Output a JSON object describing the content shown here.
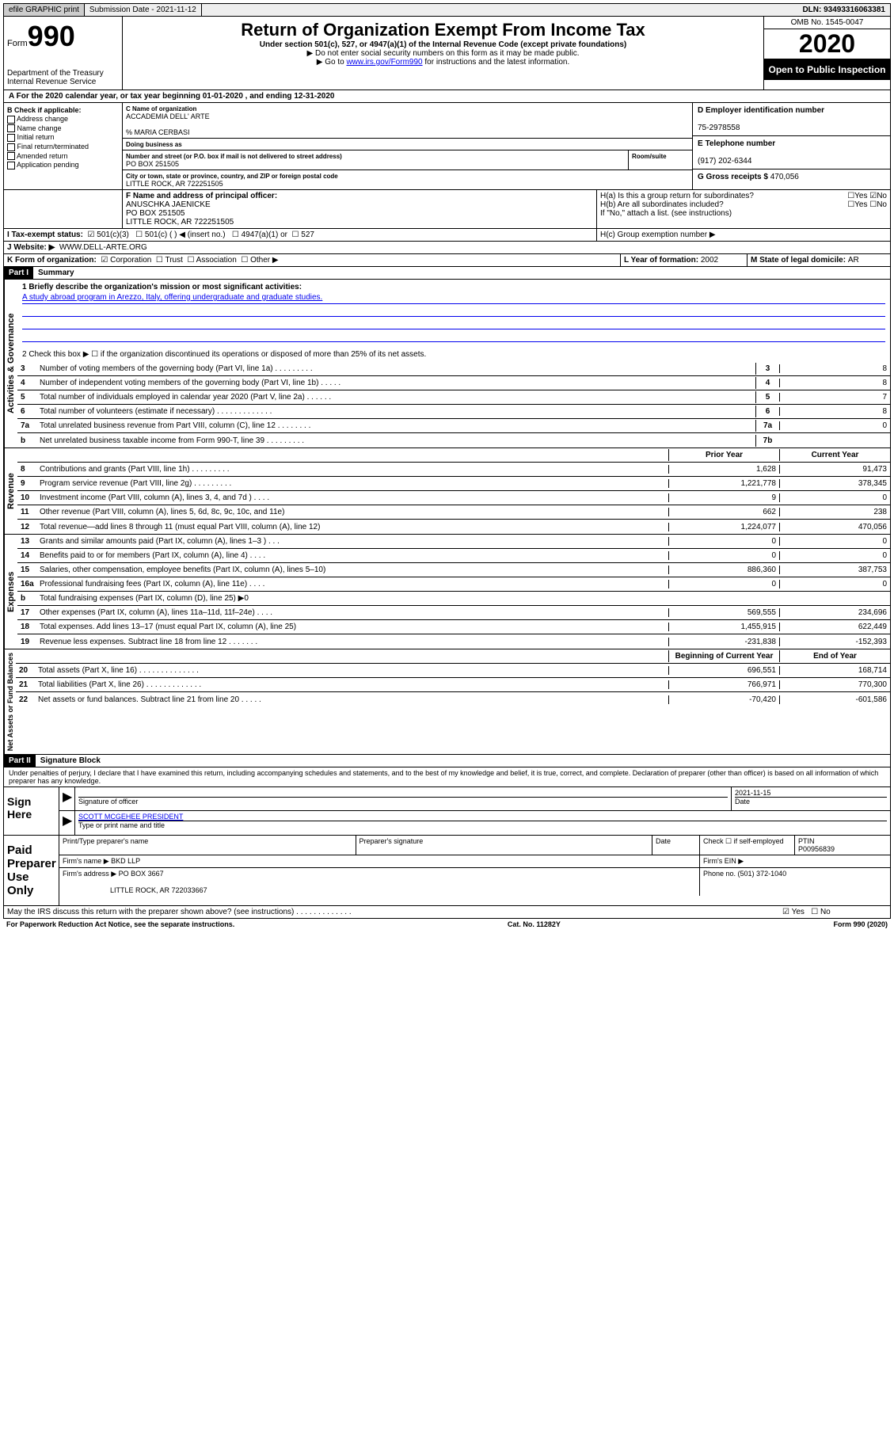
{
  "topbar": {
    "efile": "efile GRAPHIC print",
    "subdate_label": "Submission Date - ",
    "subdate": "2021-11-12",
    "dln_label": "DLN: ",
    "dln": "93493316063381"
  },
  "header": {
    "form": "Form",
    "form_num": "990",
    "dept": "Department of the Treasury",
    "irs": "Internal Revenue Service",
    "title": "Return of Organization Exempt From Income Tax",
    "subtitle": "Under section 501(c), 527, or 4947(a)(1) of the Internal Revenue Code (except private foundations)",
    "note1": "▶ Do not enter social security numbers on this form as it may be made public.",
    "note2_pre": "▶ Go to ",
    "note2_link": "www.irs.gov/Form990",
    "note2_post": " for instructions and the latest information.",
    "omb": "OMB No. 1545-0047",
    "year": "2020",
    "inspect": "Open to Public Inspection"
  },
  "blockA": "A   For the 2020 calendar year, or tax year beginning 01-01-2020    , and ending 12-31-2020",
  "blockB": {
    "header": "B Check if applicable:",
    "items": [
      "Address change",
      "Name change",
      "Initial return",
      "Final return/terminated",
      "Amended return",
      "Application pending"
    ]
  },
  "blockC": {
    "name_label": "C Name of organization",
    "name": "ACCADEMIA DELL' ARTE",
    "care_of": "% MARIA CERBASI",
    "dba_label": "Doing business as",
    "street_label": "Number and street (or P.O. box if mail is not delivered to street address)",
    "room_label": "Room/suite",
    "street": "PO BOX 251505",
    "city_label": "City or town, state or province, country, and ZIP or foreign postal code",
    "city": "LITTLE ROCK, AR   722251505"
  },
  "blockD": {
    "label": "D Employer identification number",
    "value": "75-2978558"
  },
  "blockE": {
    "label": "E Telephone number",
    "value": "(917) 202-6344"
  },
  "blockG": {
    "label": "G Gross receipts $ ",
    "value": "470,056"
  },
  "blockF": {
    "label": "F  Name and address of principal officer:",
    "name": "ANUSCHKA JAENICKE",
    "addr1": "PO BOX 251505",
    "addr2": "LITTLE ROCK, AR   722251505"
  },
  "blockH": {
    "a": "H(a)  Is this a group return for subordinates?",
    "b": "H(b)  Are all subordinates included?",
    "note": "If \"No,\" attach a list. (see instructions)",
    "c": "H(c)  Group exemption number ▶"
  },
  "blockI": {
    "label": "I   Tax-exempt status:",
    "opt1": "501(c)(3)",
    "opt2": "501(c) (   ) ◀ (insert no.)",
    "opt3": "4947(a)(1) or",
    "opt4": "527"
  },
  "blockJ": {
    "label": "J   Website: ▶",
    "value": "WWW.DELL-ARTE.ORG"
  },
  "blockK": "K Form of organization:",
  "blockK_opts": [
    "Corporation",
    "Trust",
    "Association",
    "Other ▶"
  ],
  "blockL": {
    "label": "L Year of formation: ",
    "value": "2002"
  },
  "blockM": {
    "label": "M State of legal domicile: ",
    "value": "AR"
  },
  "part1": {
    "num": "Part I",
    "title": "Summary"
  },
  "summary": {
    "q1": "1  Briefly describe the organization's mission or most significant activities:",
    "mission": "A study abroad program in Arezzo, Italy, offering undergraduate and graduate studies.",
    "q2": "2   Check this box ▶ ☐  if the organization discontinued its operations or disposed of more than 25% of its net assets."
  },
  "sections": {
    "gov": "Activities & Governance",
    "rev": "Revenue",
    "exp": "Expenses",
    "net": "Net Assets or Fund Balances"
  },
  "rows": [
    {
      "n": "3",
      "d": "Number of voting members of the governing body (Part VI, line 1a)   .   .   .   .   .   .   .   .   .",
      "b": "3",
      "v": "8"
    },
    {
      "n": "4",
      "d": "Number of independent voting members of the governing body (Part VI, line 1b)   .   .   .   .   .",
      "b": "4",
      "v": "8"
    },
    {
      "n": "5",
      "d": "Total number of individuals employed in calendar year 2020 (Part V, line 2a)   .   .   .   .   .   .",
      "b": "5",
      "v": "7"
    },
    {
      "n": "6",
      "d": "Total number of volunteers (estimate if necessary)   .   .   .   .   .   .   .   .   .   .   .   .   .",
      "b": "6",
      "v": "8"
    },
    {
      "n": "7a",
      "d": "Total unrelated business revenue from Part VIII, column (C), line 12   .   .   .   .   .   .   .   .",
      "b": "7a",
      "v": "0"
    },
    {
      "n": "b",
      "d": "Net unrelated business taxable income from Form 990-T, line 39   .   .   .   .   .   .   .   .   .",
      "b": "7b",
      "v": ""
    }
  ],
  "rev_header": {
    "prior": "Prior Year",
    "curr": "Current Year"
  },
  "rev_rows": [
    {
      "n": "8",
      "d": "Contributions and grants (Part VIII, line 1h)   .   .   .   .   .   .   .   .   .",
      "p": "1,628",
      "c": "91,473"
    },
    {
      "n": "9",
      "d": "Program service revenue (Part VIII, line 2g)   .   .   .   .   .   .   .   .   .",
      "p": "1,221,778",
      "c": "378,345"
    },
    {
      "n": "10",
      "d": "Investment income (Part VIII, column (A), lines 3, 4, and 7d )   .   .   .   .",
      "p": "9",
      "c": "0"
    },
    {
      "n": "11",
      "d": "Other revenue (Part VIII, column (A), lines 5, 6d, 8c, 9c, 10c, and 11e)",
      "p": "662",
      "c": "238"
    },
    {
      "n": "12",
      "d": "Total revenue—add lines 8 through 11 (must equal Part VIII, column (A), line 12)",
      "p": "1,224,077",
      "c": "470,056"
    }
  ],
  "exp_rows": [
    {
      "n": "13",
      "d": "Grants and similar amounts paid (Part IX, column (A), lines 1–3 )   .   .   .",
      "p": "0",
      "c": "0"
    },
    {
      "n": "14",
      "d": "Benefits paid to or for members (Part IX, column (A), line 4)   .   .   .   .",
      "p": "0",
      "c": "0"
    },
    {
      "n": "15",
      "d": "Salaries, other compensation, employee benefits (Part IX, column (A), lines 5–10)",
      "p": "886,360",
      "c": "387,753"
    },
    {
      "n": "16a",
      "d": "Professional fundraising fees (Part IX, column (A), line 11e)   .   .   .   .",
      "p": "0",
      "c": "0"
    },
    {
      "n": "b",
      "d": "Total fundraising expenses (Part IX, column (D), line 25) ▶0",
      "p": "",
      "c": "",
      "shaded": true
    },
    {
      "n": "17",
      "d": "Other expenses (Part IX, column (A), lines 11a–11d, 11f–24e)   .   .   .   .",
      "p": "569,555",
      "c": "234,696"
    },
    {
      "n": "18",
      "d": "Total expenses. Add lines 13–17 (must equal Part IX, column (A), line 25)",
      "p": "1,455,915",
      "c": "622,449"
    },
    {
      "n": "19",
      "d": "Revenue less expenses. Subtract line 18 from line 12   .   .   .   .   .   .   .",
      "p": "-231,838",
      "c": "-152,393"
    }
  ],
  "net_header": {
    "prior": "Beginning of Current Year",
    "curr": "End of Year"
  },
  "net_rows": [
    {
      "n": "20",
      "d": "Total assets (Part X, line 16)   .   .   .   .   .   .   .   .   .   .   .   .   .   .",
      "p": "696,551",
      "c": "168,714"
    },
    {
      "n": "21",
      "d": "Total liabilities (Part X, line 26)   .   .   .   .   .   .   .   .   .   .   .   .   .",
      "p": "766,971",
      "c": "770,300"
    },
    {
      "n": "22",
      "d": "Net assets or fund balances. Subtract line 21 from line 20   .   .   .   .   .",
      "p": "-70,420",
      "c": "-601,586"
    }
  ],
  "part2": {
    "num": "Part II",
    "title": "Signature Block"
  },
  "perjury": "Under penalties of perjury, I declare that I have examined this return, including accompanying schedules and statements, and to the best of my knowledge and belief, it is true, correct, and complete. Declaration of preparer (other than officer) is based on all information of which preparer has any knowledge.",
  "sign": {
    "here": "Sign Here",
    "sig_label": "Signature of officer",
    "date_label": "Date",
    "date": "2021-11-15",
    "name": "SCOTT MCGEHEE PRESIDENT",
    "name_label": "Type or print name and title"
  },
  "prep": {
    "label": "Paid Preparer Use Only",
    "print_label": "Print/Type preparer's name",
    "sig_label": "Preparer's signature",
    "date_label": "Date",
    "check_label": "Check ☐ if self-employed",
    "ptin_label": "PTIN",
    "ptin": "P00956839",
    "firm_label": "Firm's name    ▶ ",
    "firm": "BKD LLP",
    "ein_label": "Firm's EIN ▶",
    "addr_label": "Firm's address ▶ ",
    "addr1": "PO BOX 3667",
    "addr2": "LITTLE ROCK, AR   722033667",
    "phone_label": "Phone no. ",
    "phone": "(501) 372-1040"
  },
  "discuss": "May the IRS discuss this return with the preparer shown above? (see instructions)   .   .   .   .   .   .   .   .   .   .   .   .   .",
  "footer": {
    "left": "For Paperwork Reduction Act Notice, see the separate instructions.",
    "mid": "Cat. No. 11282Y",
    "right": "Form 990 (2020)"
  },
  "colors": {
    "border": "#000000",
    "bg": "#ffffff",
    "shade": "#cccccc",
    "link": "#0000ee",
    "black_bg": "#000000"
  }
}
